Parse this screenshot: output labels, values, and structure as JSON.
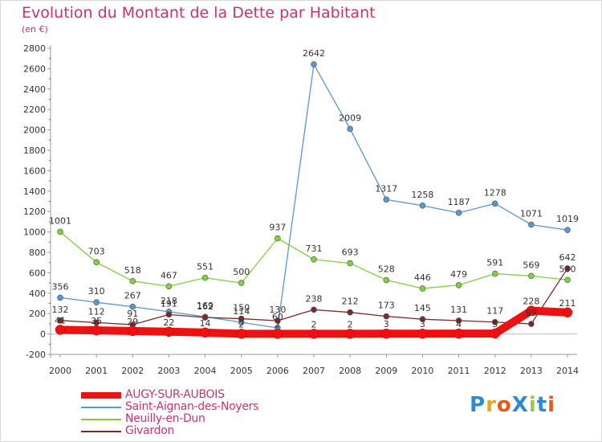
{
  "header": {
    "title": "Evolution du Montant de la Dette par Habitant",
    "subtitle": "(en €)"
  },
  "logo": {
    "text": "ProXiti",
    "colors": [
      "#2e8bd1",
      "#f0a020",
      "#e35b1a",
      "#2e8bd1",
      "#9bc83c",
      "#2e8bd1",
      "#e35b1a"
    ]
  },
  "chart_data": {
    "type": "line",
    "title": "Evolution du Montant de la Dette par Habitant",
    "subtitle": "(en €)",
    "xlabel": "",
    "ylabel": "",
    "x": [
      "2000",
      "2001",
      "2002",
      "2003",
      "2004",
      "2005",
      "2006",
      "2007",
      "2008",
      "2009",
      "2010",
      "2011",
      "2012",
      "2013",
      "2014"
    ],
    "ylim": [
      -200,
      2800
    ],
    "yticks": [
      -200,
      0,
      200,
      400,
      600,
      800,
      1000,
      1200,
      1400,
      1600,
      1800,
      2000,
      2200,
      2400,
      2600,
      2800
    ],
    "grid": false,
    "legend": "bottom-left",
    "series": [
      {
        "name": "AUGY-SUR-AUBOIS",
        "color": "#ee1111",
        "style": "thick",
        "values": [
          41,
          35,
          29,
          22,
          14,
          2,
          2,
          2,
          2,
          3,
          3,
          4,
          5,
          228,
          211
        ]
      },
      {
        "name": "Saint-Aignan-des-Noyers",
        "color": "#5b97cf",
        "style": "normal",
        "values": [
          356,
          310,
          267,
          218,
          169,
          114,
          60,
          2642,
          2009,
          1317,
          1258,
          1187,
          1278,
          1071,
          1019
        ]
      },
      {
        "name": "Neuilly-en-Dun",
        "color": "#7fcf3f",
        "style": "normal",
        "values": [
          1001,
          703,
          518,
          467,
          551,
          500,
          937,
          731,
          693,
          528,
          446,
          479,
          591,
          569,
          530
        ]
      },
      {
        "name": "Givardon",
        "color": "#7a2a2a",
        "style": "normal",
        "values": [
          132,
          112,
          91,
          191,
          162,
          150,
          130,
          238,
          212,
          173,
          145,
          131,
          117,
          99,
          642
        ]
      }
    ]
  }
}
